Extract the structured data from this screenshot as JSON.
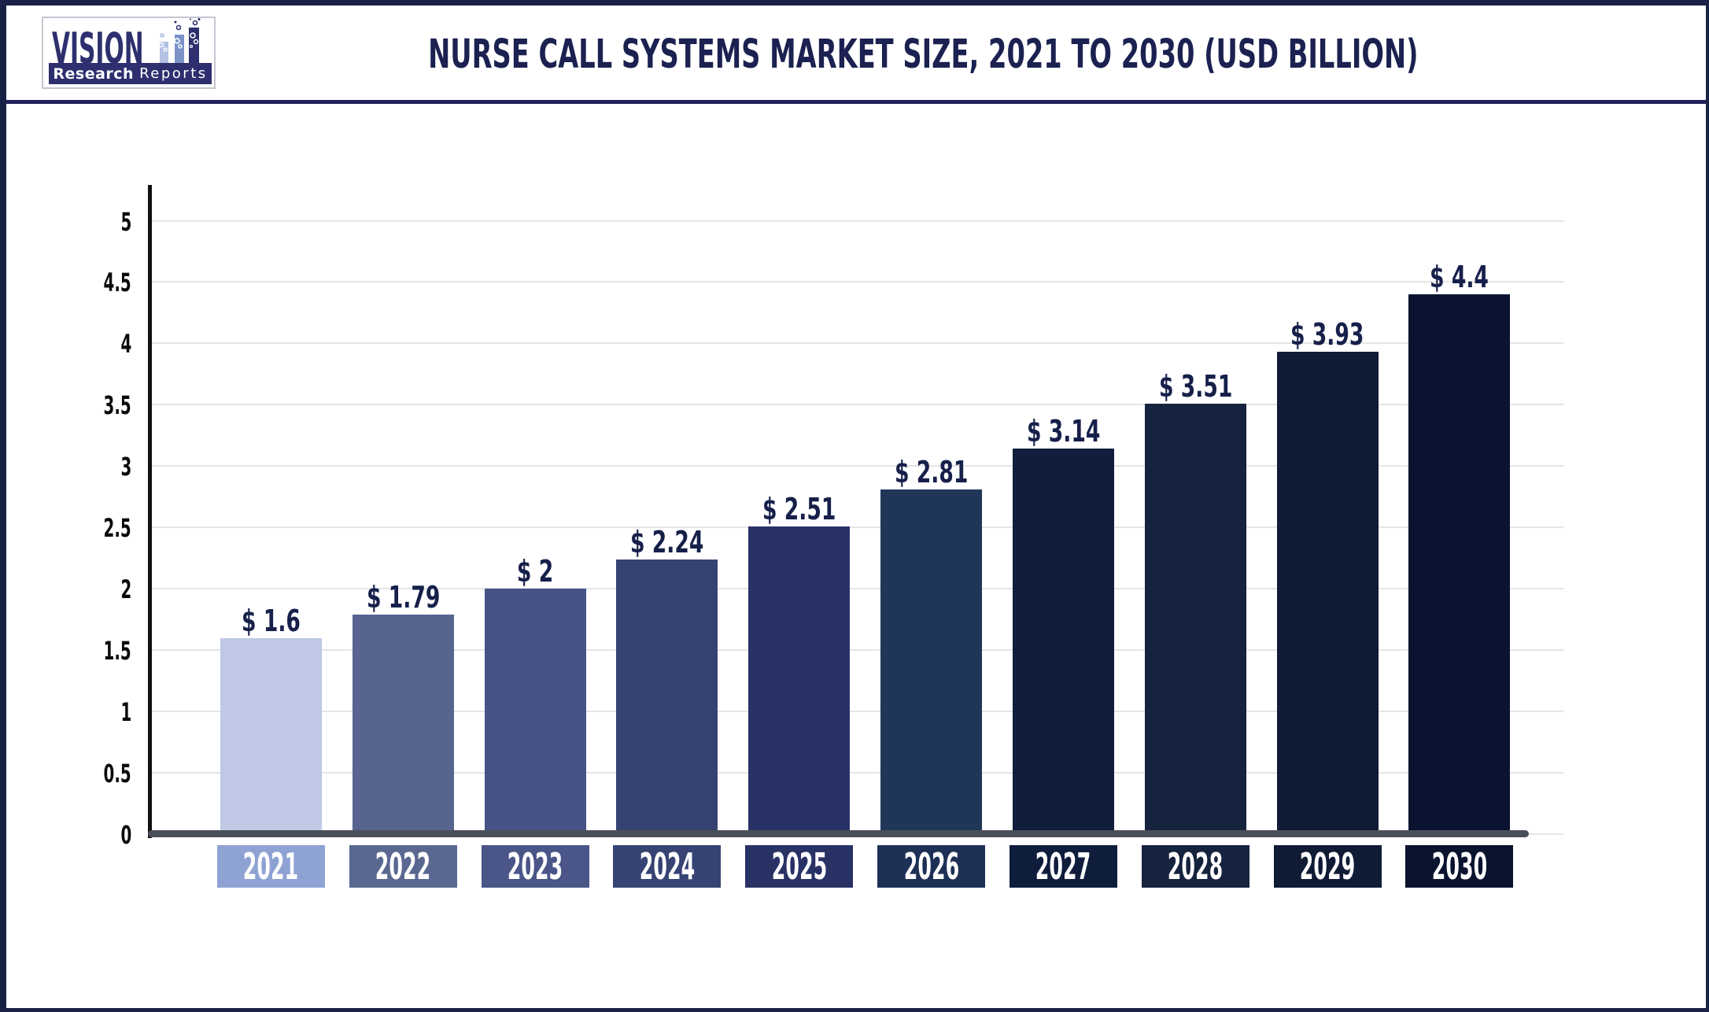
{
  "header": {
    "logo": {
      "brand": "VISION",
      "sub_bold": "Research",
      "sub_light": "Reports"
    },
    "title": "NURSE CALL SYSTEMS MARKET SIZE, 2021 TO 2030 (USD BILLION)"
  },
  "chart_data": {
    "type": "bar",
    "title": "NURSE CALL SYSTEMS MARKET SIZE, 2021 TO 2030 (USD BILLION)",
    "categories": [
      "2021",
      "2022",
      "2023",
      "2024",
      "2025",
      "2026",
      "2027",
      "2028",
      "2029",
      "2030"
    ],
    "values": [
      1.6,
      1.79,
      2,
      2.24,
      2.51,
      2.81,
      3.14,
      3.51,
      3.93,
      4.4
    ],
    "labels": [
      "$ 1.6",
      "$ 1.79",
      "$ 2",
      "$ 2.24",
      "$ 2.51",
      "$ 2.81",
      "$ 3.14",
      "$ 3.51",
      "$ 3.93",
      "$ 4.4"
    ],
    "ylim": [
      0,
      5
    ],
    "ytick_step": 0.5,
    "yticks": [
      "5",
      "4.5",
      "4",
      "3.5",
      "3",
      "2.5",
      "2",
      "1.5",
      "1",
      "0.5",
      "0"
    ],
    "grid": true,
    "legend": "none",
    "bar_colors": [
      "#bfc9e6",
      "#56648f",
      "#475287",
      "#364372",
      "#293266",
      "#1f3659",
      "#111d3d",
      "#16233e",
      "#101b36",
      "#0a1430"
    ],
    "label_box_colors": [
      "#8fa2d4",
      "#5a6891",
      "#4a5588",
      "#374373",
      "#293265",
      "#1e3055",
      "#0f1d3d",
      "#16233e",
      "#101b36",
      "#0b142e"
    ],
    "value_label_color": "#16204a",
    "axis_color": "#111111",
    "baseline_color": "#4a4f5a",
    "gridline_color": "#e5e5e5"
  }
}
